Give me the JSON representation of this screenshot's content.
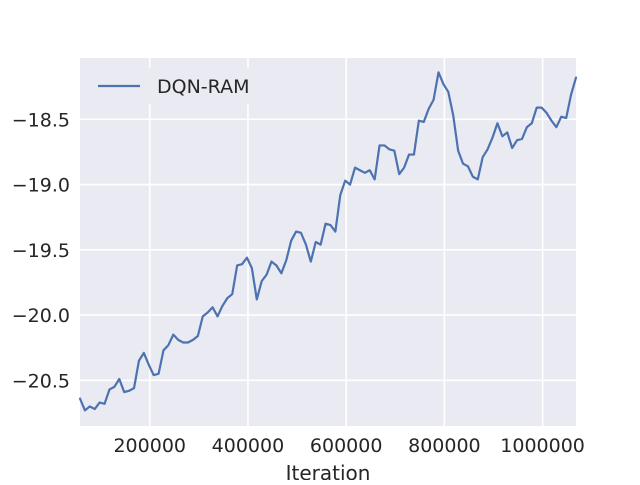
{
  "chart_data": {
    "type": "line",
    "title": "",
    "xlabel": "Iteration",
    "ylabel": "",
    "xlim": [
      58000,
      1068000
    ],
    "ylim": [
      -20.85,
      -18.03
    ],
    "xticks": [
      200000,
      400000,
      600000,
      800000,
      1000000
    ],
    "xtick_labels": [
      "200000",
      "400000",
      "600000",
      "800000",
      "1000000"
    ],
    "yticks": [
      -20.5,
      -20.0,
      -19.5,
      -19.0,
      -18.5
    ],
    "ytick_labels": [
      "−20.5",
      "−20.0",
      "−19.5",
      "−19.0",
      "−18.5"
    ],
    "grid": true,
    "legend_position": "upper-left",
    "colors": {
      "background": "#EAEAF2",
      "grid": "#FFFFFF",
      "line": "#4C72B0"
    },
    "series": [
      {
        "name": "DQN-RAM",
        "x": [
          58000,
          68000,
          78000,
          88000,
          98000,
          108000,
          118000,
          128000,
          138000,
          148000,
          158000,
          168000,
          178000,
          188000,
          198000,
          208000,
          218000,
          228000,
          238000,
          248000,
          258000,
          268000,
          278000,
          288000,
          298000,
          308000,
          318000,
          328000,
          338000,
          348000,
          358000,
          368000,
          378000,
          388000,
          398000,
          408000,
          418000,
          428000,
          438000,
          448000,
          458000,
          468000,
          478000,
          488000,
          498000,
          508000,
          518000,
          528000,
          538000,
          548000,
          558000,
          568000,
          578000,
          588000,
          598000,
          608000,
          618000,
          628000,
          638000,
          648000,
          658000,
          668000,
          678000,
          688000,
          698000,
          708000,
          718000,
          728000,
          738000,
          748000,
          758000,
          768000,
          778000,
          788000,
          798000,
          808000,
          818000,
          828000,
          838000,
          848000,
          858000,
          868000,
          878000,
          888000,
          898000,
          908000,
          918000,
          928000,
          938000,
          948000,
          958000,
          968000,
          978000,
          988000,
          998000,
          1008000,
          1018000,
          1028000,
          1038000,
          1048000,
          1058000,
          1068000
        ],
        "y": [
          -20.64,
          -20.73,
          -20.7,
          -20.72,
          -20.67,
          -20.68,
          -20.57,
          -20.55,
          -20.49,
          -20.59,
          -20.58,
          -20.56,
          -20.35,
          -20.29,
          -20.38,
          -20.46,
          -20.45,
          -20.27,
          -20.23,
          -20.15,
          -20.19,
          -20.21,
          -20.21,
          -20.19,
          -20.16,
          -20.01,
          -19.98,
          -19.94,
          -20.01,
          -19.93,
          -19.87,
          -19.84,
          -19.62,
          -19.61,
          -19.56,
          -19.64,
          -19.88,
          -19.74,
          -19.69,
          -19.59,
          -19.62,
          -19.68,
          -19.58,
          -19.43,
          -19.36,
          -19.37,
          -19.46,
          -19.59,
          -19.44,
          -19.46,
          -19.3,
          -19.31,
          -19.36,
          -19.08,
          -18.97,
          -19.0,
          -18.87,
          -18.89,
          -18.91,
          -18.89,
          -18.96,
          -18.7,
          -18.7,
          -18.73,
          -18.74,
          -18.92,
          -18.87,
          -18.77,
          -18.77,
          -18.51,
          -18.52,
          -18.42,
          -18.35,
          -18.14,
          -18.23,
          -18.29,
          -18.47,
          -18.74,
          -18.84,
          -18.86,
          -18.94,
          -18.96,
          -18.79,
          -18.73,
          -18.64,
          -18.53,
          -18.63,
          -18.6,
          -18.72,
          -18.66,
          -18.65,
          -18.56,
          -18.53,
          -18.41,
          -18.41,
          -18.45,
          -18.51,
          -18.56,
          -18.48,
          -18.49,
          -18.31,
          -18.18
        ]
      }
    ]
  }
}
